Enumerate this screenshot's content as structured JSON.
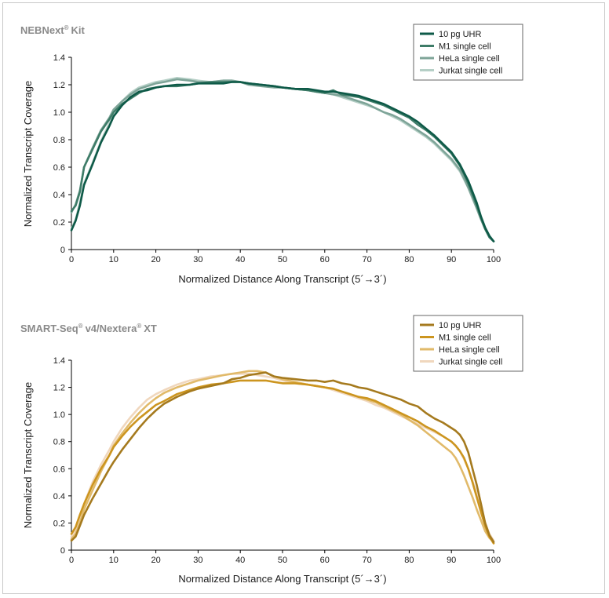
{
  "chart_data": [
    {
      "type": "line",
      "title": "NEBNext",
      "title_mark": "®",
      "title_suffix": "Kit",
      "xlabel": "Normalized Distance Along Transcript (5´→3´)",
      "ylabel": "Normalized Transcript Coverage",
      "xlim": [
        0,
        100
      ],
      "ylim": [
        0,
        1.4
      ],
      "xticks": [
        "0",
        "10",
        "20",
        "30",
        "40",
        "50",
        "60",
        "70",
        "80",
        "90",
        "100"
      ],
      "yticks": [
        "0",
        "0.2",
        "0.4",
        "0.6",
        "0.8",
        "1.0",
        "1.2",
        "1.4"
      ],
      "legend_position": "top-right",
      "grid": false,
      "series": [
        {
          "name": "10 pg UHR",
          "color": "#0e5a48",
          "x": [
            0,
            1,
            2,
            3,
            5,
            7,
            9,
            10,
            12,
            14,
            16,
            18,
            20,
            22,
            25,
            28,
            30,
            33,
            36,
            38,
            40,
            42,
            45,
            48,
            50,
            53,
            56,
            58,
            60,
            62,
            64,
            66,
            68,
            70,
            72,
            74,
            76,
            78,
            80,
            82,
            84,
            86,
            88,
            90,
            92,
            93,
            94,
            95,
            96,
            97,
            98,
            99,
            100
          ],
          "y": [
            0.14,
            0.21,
            0.32,
            0.47,
            0.62,
            0.78,
            0.9,
            0.97,
            1.05,
            1.11,
            1.15,
            1.16,
            1.18,
            1.19,
            1.2,
            1.2,
            1.21,
            1.21,
            1.21,
            1.22,
            1.22,
            1.21,
            1.2,
            1.19,
            1.18,
            1.17,
            1.17,
            1.16,
            1.15,
            1.15,
            1.14,
            1.13,
            1.12,
            1.1,
            1.08,
            1.06,
            1.03,
            1.0,
            0.97,
            0.93,
            0.88,
            0.83,
            0.77,
            0.71,
            0.62,
            0.56,
            0.5,
            0.42,
            0.34,
            0.24,
            0.16,
            0.1,
            0.06
          ]
        },
        {
          "name": "M1 single cell",
          "color": "#3e7c68",
          "x": [
            0,
            1,
            2,
            3,
            5,
            7,
            9,
            10,
            12,
            14,
            16,
            18,
            20,
            22,
            25,
            28,
            30,
            33,
            36,
            38,
            40,
            42,
            45,
            48,
            50,
            53,
            56,
            58,
            60,
            62,
            64,
            66,
            68,
            70,
            72,
            74,
            76,
            78,
            80,
            82,
            84,
            86,
            88,
            90,
            92,
            93,
            94,
            95,
            96,
            97,
            98,
            99,
            100
          ],
          "y": [
            0.28,
            0.32,
            0.42,
            0.6,
            0.73,
            0.86,
            0.95,
            1.0,
            1.06,
            1.1,
            1.14,
            1.17,
            1.18,
            1.19,
            1.19,
            1.2,
            1.21,
            1.22,
            1.22,
            1.22,
            1.22,
            1.21,
            1.2,
            1.19,
            1.18,
            1.17,
            1.16,
            1.15,
            1.14,
            1.16,
            1.13,
            1.12,
            1.11,
            1.09,
            1.07,
            1.05,
            1.02,
            0.99,
            0.96,
            0.91,
            0.87,
            0.82,
            0.76,
            0.7,
            0.61,
            0.55,
            0.48,
            0.4,
            0.32,
            0.23,
            0.15,
            0.09,
            0.06
          ]
        },
        {
          "name": "HeLa single cell",
          "color": "#7ea498",
          "x": [
            0,
            1,
            2,
            3,
            5,
            7,
            9,
            10,
            12,
            14,
            16,
            18,
            20,
            22,
            25,
            28,
            30,
            33,
            36,
            38,
            40,
            42,
            45,
            48,
            50,
            53,
            56,
            58,
            60,
            62,
            64,
            66,
            68,
            70,
            72,
            74,
            76,
            78,
            80,
            82,
            84,
            86,
            88,
            90,
            92,
            93,
            94,
            95,
            96,
            97,
            98,
            99,
            100
          ],
          "y": [
            0.27,
            0.33,
            0.43,
            0.6,
            0.74,
            0.87,
            0.96,
            1.02,
            1.08,
            1.13,
            1.17,
            1.19,
            1.21,
            1.22,
            1.24,
            1.23,
            1.22,
            1.22,
            1.23,
            1.23,
            1.22,
            1.2,
            1.19,
            1.18,
            1.18,
            1.17,
            1.16,
            1.15,
            1.14,
            1.13,
            1.12,
            1.1,
            1.08,
            1.06,
            1.03,
            1.0,
            0.98,
            0.95,
            0.91,
            0.87,
            0.83,
            0.78,
            0.72,
            0.66,
            0.58,
            0.52,
            0.45,
            0.38,
            0.3,
            0.22,
            0.15,
            0.09,
            0.06
          ]
        },
        {
          "name": "Jurkat single cell",
          "color": "#b5cfc6",
          "x": [
            0,
            1,
            2,
            3,
            5,
            7,
            9,
            10,
            12,
            14,
            16,
            18,
            20,
            22,
            25,
            28,
            30,
            33,
            36,
            38,
            40,
            42,
            45,
            48,
            50,
            53,
            56,
            58,
            60,
            62,
            64,
            66,
            68,
            70,
            72,
            74,
            76,
            78,
            80,
            82,
            84,
            86,
            88,
            90,
            92,
            93,
            94,
            95,
            96,
            97,
            98,
            99,
            100
          ],
          "y": [
            0.15,
            0.22,
            0.34,
            0.48,
            0.63,
            0.79,
            0.92,
            1.0,
            1.08,
            1.14,
            1.18,
            1.2,
            1.22,
            1.23,
            1.25,
            1.24,
            1.23,
            1.22,
            1.23,
            1.23,
            1.22,
            1.21,
            1.2,
            1.19,
            1.18,
            1.17,
            1.16,
            1.15,
            1.14,
            1.13,
            1.11,
            1.09,
            1.07,
            1.05,
            1.03,
            1.0,
            0.97,
            0.94,
            0.9,
            0.86,
            0.82,
            0.77,
            0.71,
            0.65,
            0.57,
            0.51,
            0.45,
            0.37,
            0.3,
            0.22,
            0.15,
            0.09,
            0.06
          ]
        }
      ]
    },
    {
      "type": "line",
      "title": "SMART-Seq",
      "title_mark": "®",
      "title_suffix": "v4/Nextera",
      "title_mark2": "®",
      "title_suffix2": "XT",
      "xlabel": "Normalized Distance Along Transcript (5´→3´)",
      "ylabel": "Normalized Transcript Coverage",
      "xlim": [
        0,
        100
      ],
      "ylim": [
        0,
        1.4
      ],
      "xticks": [
        "0",
        "10",
        "20",
        "30",
        "40",
        "50",
        "60",
        "70",
        "80",
        "90",
        "100"
      ],
      "yticks": [
        "0",
        "0.2",
        "0.4",
        "0.6",
        "0.8",
        "1.0",
        "1.2",
        "1.4"
      ],
      "legend_position": "top-right",
      "grid": false,
      "series": [
        {
          "name": "10 pg UHR",
          "color": "#a57a1e",
          "x": [
            0,
            1,
            2,
            3,
            5,
            7,
            9,
            10,
            12,
            14,
            16,
            18,
            20,
            22,
            25,
            28,
            30,
            33,
            36,
            38,
            40,
            42,
            44,
            46,
            48,
            50,
            53,
            56,
            58,
            60,
            62,
            64,
            66,
            68,
            70,
            72,
            74,
            76,
            78,
            80,
            82,
            84,
            86,
            88,
            90,
            91,
            92,
            93,
            94,
            95,
            96,
            97,
            98,
            99,
            100
          ],
          "y": [
            0.07,
            0.1,
            0.18,
            0.26,
            0.38,
            0.49,
            0.6,
            0.65,
            0.74,
            0.82,
            0.9,
            0.97,
            1.03,
            1.08,
            1.13,
            1.17,
            1.19,
            1.21,
            1.23,
            1.26,
            1.27,
            1.29,
            1.3,
            1.31,
            1.28,
            1.27,
            1.26,
            1.25,
            1.25,
            1.24,
            1.25,
            1.23,
            1.22,
            1.2,
            1.19,
            1.17,
            1.15,
            1.13,
            1.11,
            1.08,
            1.06,
            1.01,
            0.97,
            0.94,
            0.9,
            0.88,
            0.85,
            0.8,
            0.72,
            0.6,
            0.48,
            0.34,
            0.2,
            0.11,
            0.06
          ]
        },
        {
          "name": "M1 single cell",
          "color": "#cc951f",
          "x": [
            0,
            1,
            2,
            3,
            5,
            7,
            9,
            10,
            12,
            14,
            16,
            18,
            20,
            22,
            25,
            28,
            30,
            33,
            36,
            38,
            40,
            42,
            44,
            46,
            48,
            50,
            53,
            56,
            58,
            60,
            62,
            64,
            66,
            68,
            70,
            72,
            74,
            76,
            78,
            80,
            82,
            84,
            86,
            88,
            90,
            91,
            92,
            93,
            94,
            95,
            96,
            97,
            98,
            99,
            100
          ],
          "y": [
            0.12,
            0.17,
            0.26,
            0.34,
            0.48,
            0.6,
            0.7,
            0.76,
            0.84,
            0.91,
            0.97,
            1.02,
            1.07,
            1.1,
            1.15,
            1.18,
            1.2,
            1.22,
            1.23,
            1.24,
            1.25,
            1.25,
            1.25,
            1.25,
            1.24,
            1.23,
            1.23,
            1.22,
            1.21,
            1.2,
            1.19,
            1.17,
            1.15,
            1.13,
            1.12,
            1.1,
            1.07,
            1.04,
            1.01,
            0.98,
            0.95,
            0.91,
            0.88,
            0.84,
            0.8,
            0.77,
            0.73,
            0.68,
            0.6,
            0.5,
            0.39,
            0.28,
            0.18,
            0.1,
            0.05
          ]
        },
        {
          "name": "HeLa single cell",
          "color": "#e1ba6a",
          "x": [
            0,
            1,
            2,
            3,
            5,
            7,
            9,
            10,
            12,
            14,
            16,
            18,
            20,
            22,
            25,
            28,
            30,
            33,
            36,
            38,
            40,
            42,
            44,
            46,
            48,
            50,
            53,
            56,
            58,
            60,
            62,
            64,
            66,
            68,
            70,
            72,
            74,
            76,
            78,
            80,
            82,
            84,
            86,
            88,
            90,
            91,
            92,
            93,
            94,
            95,
            96,
            97,
            98,
            99,
            100
          ],
          "y": [
            0.08,
            0.12,
            0.2,
            0.3,
            0.44,
            0.58,
            0.7,
            0.77,
            0.86,
            0.94,
            1.01,
            1.07,
            1.12,
            1.16,
            1.2,
            1.23,
            1.25,
            1.27,
            1.29,
            1.3,
            1.31,
            1.32,
            1.32,
            1.31,
            1.28,
            1.26,
            1.24,
            1.22,
            1.21,
            1.2,
            1.19,
            1.17,
            1.15,
            1.13,
            1.11,
            1.09,
            1.06,
            1.03,
            1.0,
            0.96,
            0.92,
            0.87,
            0.82,
            0.77,
            0.72,
            0.68,
            0.62,
            0.55,
            0.47,
            0.39,
            0.3,
            0.22,
            0.14,
            0.09,
            0.06
          ]
        },
        {
          "name": "Jurkat single cell",
          "color": "#f0d7bd",
          "x": [
            0,
            1,
            2,
            3,
            5,
            7,
            9,
            10,
            12,
            14,
            16,
            18,
            20,
            22,
            25,
            28,
            30,
            33,
            36,
            38,
            40,
            42,
            44,
            46,
            48,
            50,
            53,
            56,
            58,
            60,
            62,
            64,
            66,
            68,
            70,
            72,
            74,
            76,
            78,
            80,
            82,
            84,
            86,
            88,
            90,
            91,
            92,
            93,
            94,
            95,
            96,
            97,
            98,
            99,
            100
          ],
          "y": [
            0.1,
            0.15,
            0.24,
            0.34,
            0.5,
            0.63,
            0.74,
            0.8,
            0.9,
            0.98,
            1.05,
            1.11,
            1.15,
            1.18,
            1.22,
            1.25,
            1.26,
            1.28,
            1.29,
            1.3,
            1.3,
            1.3,
            1.29,
            1.28,
            1.27,
            1.25,
            1.23,
            1.22,
            1.21,
            1.2,
            1.18,
            1.16,
            1.14,
            1.12,
            1.1,
            1.07,
            1.05,
            1.02,
            0.99,
            0.96,
            0.93,
            0.9,
            0.87,
            0.84,
            0.8,
            0.77,
            0.73,
            0.67,
            0.6,
            0.51,
            0.41,
            0.3,
            0.2,
            0.12,
            0.07
          ]
        }
      ]
    }
  ]
}
